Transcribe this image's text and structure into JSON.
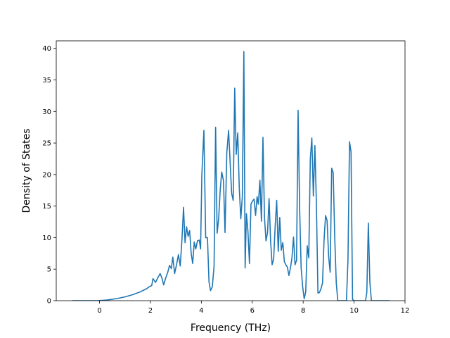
{
  "chart_data": {
    "type": "line",
    "title": "",
    "xlabel": "Frequency (THz)",
    "ylabel": "Density of States",
    "xlim": [
      -1.7,
      12.0
    ],
    "ylim": [
      0,
      41.2
    ],
    "xticks": [
      0,
      2,
      4,
      6,
      8,
      10,
      12
    ],
    "yticks": [
      0,
      5,
      10,
      15,
      20,
      25,
      30,
      35,
      40
    ],
    "grid": false,
    "legend": "none",
    "line_color": "#1f77b4",
    "series": [
      {
        "values": [
          [
            -1.07,
            0
          ],
          [
            -0.1,
            0
          ],
          [
            0.3,
            0.1
          ],
          [
            0.7,
            0.35
          ],
          [
            1.0,
            0.6
          ],
          [
            1.3,
            0.95
          ],
          [
            1.6,
            1.4
          ],
          [
            1.85,
            1.9
          ],
          [
            1.95,
            2.2
          ],
          [
            2.05,
            2.4
          ],
          [
            2.1,
            3.5
          ],
          [
            2.2,
            2.9
          ],
          [
            2.3,
            3.7
          ],
          [
            2.38,
            4.3
          ],
          [
            2.45,
            3.6
          ],
          [
            2.52,
            2.5
          ],
          [
            2.6,
            3.6
          ],
          [
            2.68,
            4.5
          ],
          [
            2.75,
            5.6
          ],
          [
            2.82,
            5.1
          ],
          [
            2.88,
            6.9
          ],
          [
            2.95,
            4.3
          ],
          [
            3.02,
            5.6
          ],
          [
            3.1,
            7.3
          ],
          [
            3.17,
            5.5
          ],
          [
            3.24,
            9.8
          ],
          [
            3.3,
            14.8
          ],
          [
            3.36,
            9.2
          ],
          [
            3.42,
            11.7
          ],
          [
            3.48,
            10.2
          ],
          [
            3.54,
            11.1
          ],
          [
            3.6,
            7.5
          ],
          [
            3.66,
            5.9
          ],
          [
            3.72,
            9.3
          ],
          [
            3.78,
            8.2
          ],
          [
            3.85,
            9.5
          ],
          [
            3.92,
            9.6
          ],
          [
            3.97,
            8.2
          ],
          [
            4.02,
            20
          ],
          [
            4.1,
            27
          ],
          [
            4.17,
            10
          ],
          [
            4.24,
            10
          ],
          [
            4.3,
            3.0
          ],
          [
            4.36,
            1.6
          ],
          [
            4.43,
            2.2
          ],
          [
            4.5,
            5.5
          ],
          [
            4.56,
            27.5
          ],
          [
            4.62,
            10.7
          ],
          [
            4.68,
            13
          ],
          [
            4.74,
            17.5
          ],
          [
            4.8,
            20.4
          ],
          [
            4.87,
            19
          ],
          [
            4.93,
            10.8
          ],
          [
            5.0,
            23.5
          ],
          [
            5.07,
            27
          ],
          [
            5.13,
            22
          ],
          [
            5.19,
            17
          ],
          [
            5.25,
            15.9
          ],
          [
            5.31,
            33.7
          ],
          [
            5.37,
            23.2
          ],
          [
            5.43,
            26.6
          ],
          [
            5.49,
            17.8
          ],
          [
            5.55,
            13
          ],
          [
            5.61,
            16.5
          ],
          [
            5.67,
            39.5
          ],
          [
            5.72,
            5.2
          ],
          [
            5.77,
            13.8
          ],
          [
            5.83,
            11
          ],
          [
            5.89,
            5.9
          ],
          [
            5.95,
            15.3
          ],
          [
            6.01,
            15.8
          ],
          [
            6.07,
            16.1
          ],
          [
            6.13,
            13.5
          ],
          [
            6.19,
            16.5
          ],
          [
            6.24,
            15.3
          ],
          [
            6.3,
            19.1
          ],
          [
            6.36,
            12.6
          ],
          [
            6.42,
            25.9
          ],
          [
            6.48,
            13.2
          ],
          [
            6.54,
            9.5
          ],
          [
            6.6,
            10.8
          ],
          [
            6.66,
            16.2
          ],
          [
            6.72,
            9.5
          ],
          [
            6.78,
            5.7
          ],
          [
            6.84,
            6.6
          ],
          [
            6.9,
            11.8
          ],
          [
            6.96,
            15.9
          ],
          [
            7.02,
            7.8
          ],
          [
            7.08,
            13.2
          ],
          [
            7.14,
            8
          ],
          [
            7.2,
            9.2
          ],
          [
            7.26,
            6.2
          ],
          [
            7.32,
            5.7
          ],
          [
            7.38,
            5.3
          ],
          [
            7.44,
            4
          ],
          [
            7.5,
            5.2
          ],
          [
            7.56,
            6.8
          ],
          [
            7.62,
            10.1
          ],
          [
            7.68,
            5.7
          ],
          [
            7.74,
            6.4
          ],
          [
            7.8,
            30.2
          ],
          [
            7.86,
            14.8
          ],
          [
            7.92,
            5.2
          ],
          [
            7.98,
            2.2
          ],
          [
            8.04,
            0.3
          ],
          [
            8.1,
            1.4
          ],
          [
            8.16,
            8.7
          ],
          [
            8.22,
            6.8
          ],
          [
            8.28,
            22.5
          ],
          [
            8.34,
            25.8
          ],
          [
            8.4,
            16.6
          ],
          [
            8.46,
            24.6
          ],
          [
            8.52,
            15.3
          ],
          [
            8.58,
            1.2
          ],
          [
            8.64,
            1.3
          ],
          [
            8.7,
            1.9
          ],
          [
            8.76,
            2.8
          ],
          [
            8.82,
            9.6
          ],
          [
            8.88,
            13.5
          ],
          [
            8.94,
            12.7
          ],
          [
            9.0,
            7
          ],
          [
            9.06,
            4.5
          ],
          [
            9.12,
            21
          ],
          [
            9.18,
            20.3
          ],
          [
            9.24,
            10
          ],
          [
            9.3,
            2.8
          ],
          [
            9.36,
            0
          ],
          [
            9.7,
            0
          ],
          [
            9.76,
            6.5
          ],
          [
            9.82,
            25.2
          ],
          [
            9.88,
            23.6
          ],
          [
            9.94,
            0.2
          ],
          [
            10.0,
            0
          ],
          [
            10.45,
            0
          ],
          [
            10.5,
            1.3
          ],
          [
            10.56,
            12.3
          ],
          [
            10.62,
            2.9
          ],
          [
            10.68,
            0
          ],
          [
            11.4,
            0
          ]
        ]
      }
    ]
  }
}
